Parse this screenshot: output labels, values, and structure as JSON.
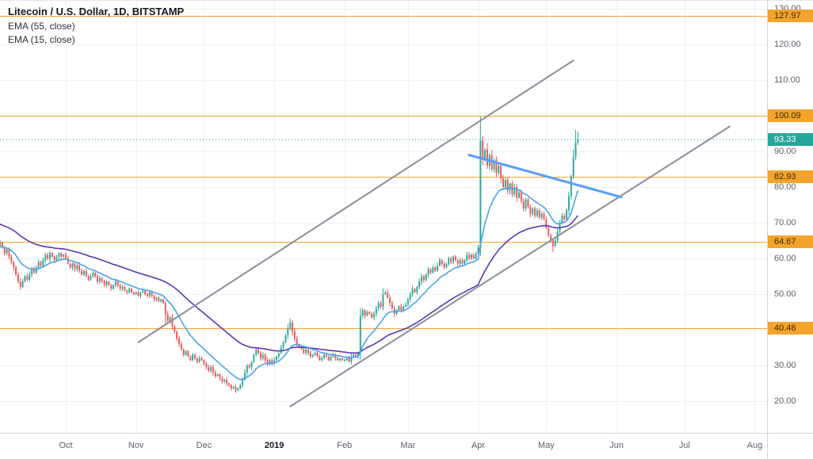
{
  "legend": {
    "title": "Litecoin / U.S. Dollar, 1D, BITSTAMP",
    "indicators": [
      "EMA (55, close)",
      "EMA (15, close)"
    ]
  },
  "price_axis": {
    "ticks": [
      20,
      30,
      40,
      50,
      60,
      70,
      80,
      90,
      100,
      110,
      120,
      130
    ]
  },
  "time_axis": {
    "labels": [
      {
        "label": "Oct",
        "day": 30
      },
      {
        "label": "Nov",
        "day": 61
      },
      {
        "label": "Dec",
        "day": 91
      },
      {
        "label": "2019",
        "day": 122,
        "year": true
      },
      {
        "label": "Feb",
        "day": 153
      },
      {
        "label": "Mar",
        "day": 181
      },
      {
        "label": "Apr",
        "day": 212
      },
      {
        "label": "May",
        "day": 242
      },
      {
        "label": "Jun",
        "day": 273
      },
      {
        "label": "Jul",
        "day": 303
      },
      {
        "label": "Aug",
        "day": 334
      }
    ]
  },
  "chart_data": {
    "type": "candlestick",
    "symbol": "Litecoin / U.S. Dollar",
    "interval": "1D",
    "exchange": "BITSTAMP",
    "last_price": 93.33,
    "ylim": [
      11,
      132
    ],
    "grid": true,
    "legend_position": "top-left",
    "open0": 64,
    "closes": [
      63.5,
      64.5,
      63,
      61.5,
      62.5,
      60.5,
      59,
      57.5,
      55.5,
      53.5,
      52,
      53.5,
      55,
      54,
      55.5,
      57,
      56,
      57.5,
      59,
      58,
      59.5,
      61,
      60,
      61.5,
      60.5,
      59.5,
      60.5,
      61.5,
      60.5,
      61,
      60,
      58.5,
      57.5,
      58.5,
      57,
      58,
      56.5,
      55.5,
      56.5,
      55,
      54,
      55,
      56,
      55,
      53.5,
      54.5,
      53.5,
      52.5,
      53.5,
      52.5,
      51.5,
      52.5,
      53.5,
      52.5,
      51.5,
      52,
      51,
      50.5,
      51.5,
      50.5,
      50,
      50.5,
      49.5,
      50.5,
      51,
      50,
      49.5,
      50.5,
      49.5,
      48.5,
      49,
      48,
      48.5,
      47.5,
      44.5,
      42.5,
      43.5,
      41,
      39.5,
      37.5,
      36,
      34.5,
      33,
      34,
      32.5,
      31.5,
      33,
      32,
      31,
      32,
      31.5,
      30.5,
      29.5,
      28.5,
      29.5,
      28,
      27,
      27.5,
      26.5,
      25.5,
      26,
      25,
      24.5,
      23.5,
      24,
      23,
      23.5,
      24.5,
      26,
      28,
      30,
      29.5,
      31,
      33,
      34.5,
      33.5,
      32,
      33,
      31.5,
      30.5,
      31.5,
      30.5,
      31.5,
      32.5,
      33.5,
      35,
      36.5,
      38.5,
      40.5,
      42,
      39.5,
      37.5,
      36,
      35,
      34.5,
      33.5,
      34.5,
      33.5,
      32.5,
      33,
      33.5,
      32.5,
      31.5,
      32,
      33,
      32.5,
      31.5,
      32.5,
      33,
      32,
      31.5,
      32,
      31.5,
      31.5,
      32,
      31,
      32.5,
      33,
      32.5,
      33.5,
      44,
      45.5,
      44,
      45,
      44.5,
      43.5,
      44.5,
      46,
      47.5,
      46.5,
      50,
      50.5,
      49,
      47.5,
      46,
      44.5,
      45.5,
      46.5,
      45.5,
      46.5,
      47,
      48.5,
      50,
      51.5,
      50.5,
      52,
      53.5,
      55,
      54,
      55.5,
      57,
      56,
      57.5,
      56.5,
      58,
      59.5,
      58.5,
      57.5,
      58.5,
      60,
      59,
      60.5,
      59.5,
      58.5,
      59.5,
      58.5,
      59.5,
      61,
      60,
      61,
      60,
      61.5,
      63,
      93,
      88,
      90.5,
      86,
      89,
      85,
      87.5,
      84,
      86,
      82.5,
      80,
      82,
      79,
      81,
      78,
      80,
      77,
      78.5,
      76,
      74,
      76.5,
      74.5,
      72.5,
      74,
      72,
      73.5,
      71.5,
      72.5,
      71,
      68.5,
      66.5,
      65,
      63.5,
      65,
      67.5,
      70,
      72,
      71,
      73.5,
      77.5,
      83,
      88.5,
      92.5,
      93.33
    ],
    "wick_overrides": {
      "74": {
        "l": 41.8
      },
      "105": {
        "l": 22.3
      },
      "129": {
        "h": 43.2
      },
      "170": {
        "h": 51.6
      },
      "213": {
        "h": 99.8
      },
      "245": {
        "l": 61.8
      },
      "255": {
        "h": 96.0
      },
      "256": {
        "h": 95.5
      }
    },
    "emas": [
      {
        "name": "EMA 55",
        "period": 55,
        "seed": 70,
        "color": "#5e35b1"
      },
      {
        "name": "EMA 15",
        "period": 15,
        "seed": 63,
        "color": "#4aa3e8"
      }
    ],
    "price_levels": [
      127.97,
      100.09,
      82.93,
      64.67,
      40.46
    ],
    "trendlines": [
      {
        "name": "ascending-channel-upper-trendline",
        "day1": 62,
        "price1": 36.5,
        "day2": 254,
        "price2": 115.5,
        "color": "#8a8e98",
        "width": 2
      },
      {
        "name": "ascending-channel-lower-trendline",
        "day1": 129,
        "price1": 18.5,
        "day2": 323,
        "price2": 97,
        "color": "#8a8e98",
        "width": 2
      },
      {
        "name": "blue-resistance-trendline",
        "day1": 208,
        "price1": 89,
        "day2": 275,
        "price2": 77.2,
        "color": "#5b9cf6",
        "width": 3
      }
    ],
    "colors": {
      "up": "#26a69a",
      "down": "#ef5350",
      "grid": "#eef1f6",
      "level": "#f2a42c",
      "level_text": "#3b2a00",
      "last": "#26a69a",
      "axis_text": "#5a5f6a"
    },
    "x_map": {
      "x0": -2.8,
      "dx": 2.86
    },
    "y_map": {
      "p0": 120,
      "y0": 55,
      "scale": 4.5
    }
  }
}
